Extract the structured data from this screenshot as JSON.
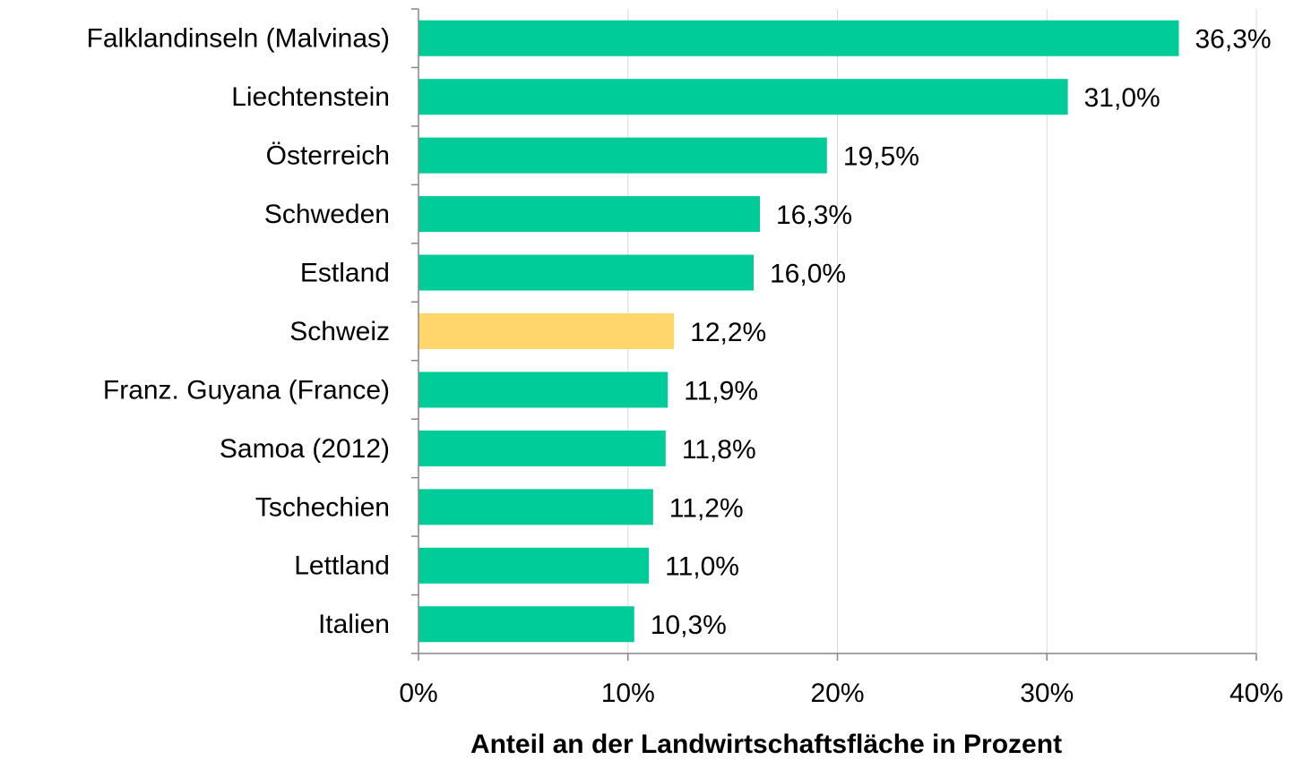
{
  "chart_data": {
    "type": "hbar",
    "x_label": "Anteil an der Landwirtschaftsfläche in Prozent",
    "categories": [
      "Falklandinseln (Malvinas)",
      "Liechtenstein",
      "Österreich",
      "Schweden",
      "Estland",
      "Schweiz",
      "Franz. Guyana (France)",
      "Samoa (2012)",
      "Tschechien",
      "Lettland",
      "Italien"
    ],
    "values": [
      36.3,
      31.0,
      19.5,
      16.3,
      16.0,
      12.2,
      11.9,
      11.8,
      11.2,
      11.0,
      10.3
    ],
    "value_labels": [
      "36,3%",
      "31,0%",
      "19,5%",
      "16,3%",
      "16,0%",
      "12,2%",
      "11,9%",
      "11,8%",
      "11,2%",
      "11,0%",
      "10,3%"
    ],
    "colors": [
      "#00cc99",
      "#00cc99",
      "#00cc99",
      "#00cc99",
      "#00cc99",
      "#ffd66b",
      "#00cc99",
      "#00cc99",
      "#00cc99",
      "#00cc99",
      "#00cc99"
    ],
    "xlim": [
      0,
      40
    ],
    "xticks": [
      {
        "value": 0,
        "label": "0%"
      },
      {
        "value": 10,
        "label": "10%"
      },
      {
        "value": 20,
        "label": "20%"
      },
      {
        "value": 30,
        "label": "30%"
      },
      {
        "value": 40,
        "label": "40%"
      }
    ],
    "grid": true
  }
}
